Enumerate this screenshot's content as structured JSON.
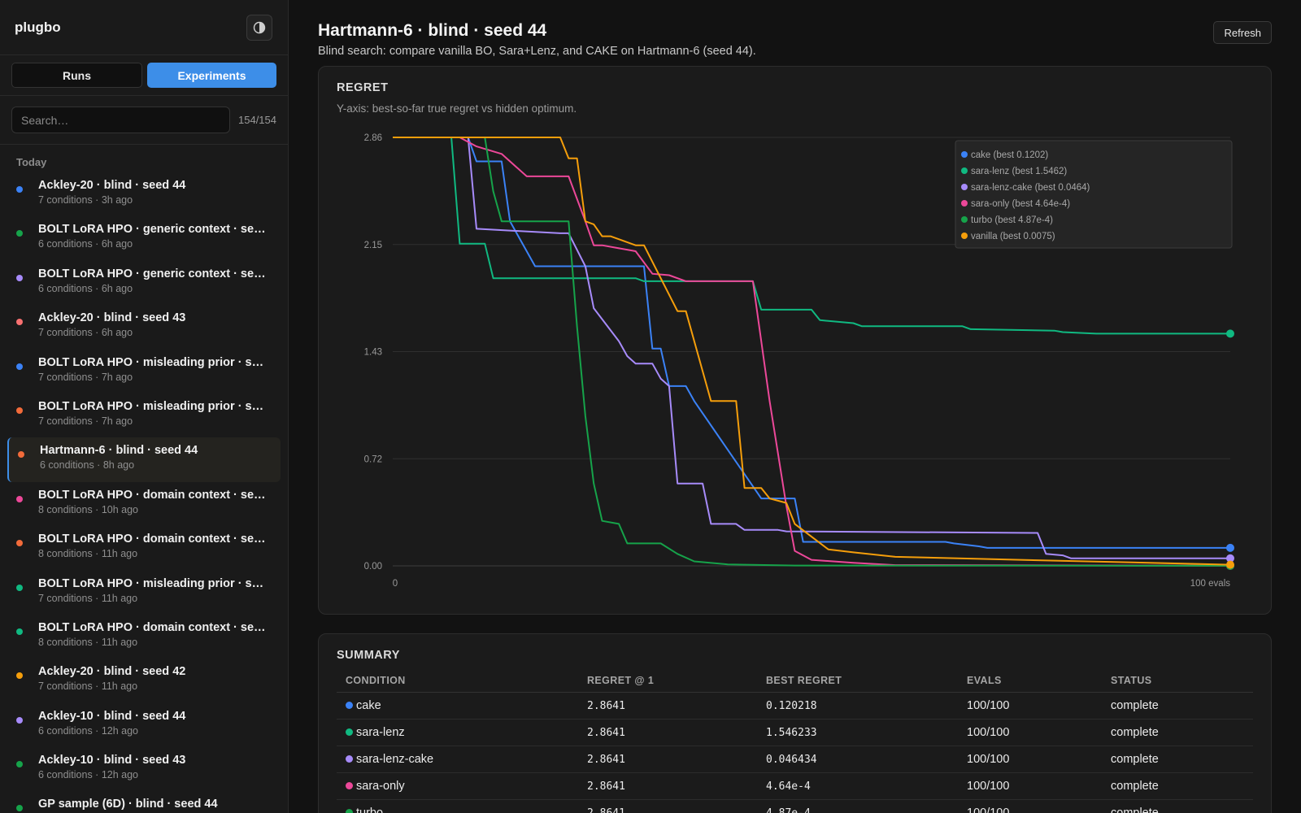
{
  "sidebar": {
    "brand": "plugbo",
    "theme_icon": "contrast-icon",
    "tabs": [
      {
        "label": "Runs",
        "active": false
      },
      {
        "label": "Experiments",
        "active": true
      }
    ],
    "search_placeholder": "Search…",
    "count": "154/154",
    "group": "Today",
    "items": [
      {
        "title": "Ackley-20 · blind · seed 44",
        "meta": "7 conditions  ·  3h ago",
        "color": "#3b82f6"
      },
      {
        "title": "BOLT LoRA HPO · generic context · seed ...",
        "meta": "6 conditions  ·  6h ago",
        "color": "#16a34a"
      },
      {
        "title": "BOLT LoRA HPO · generic context · seed ...",
        "meta": "6 conditions  ·  6h ago",
        "color": "#a78bfa"
      },
      {
        "title": "Ackley-20 · blind · seed 43",
        "meta": "7 conditions  ·  6h ago",
        "color": "#f87171"
      },
      {
        "title": "BOLT LoRA HPO · misleading prior · seed ...",
        "meta": "7 conditions  ·  7h ago",
        "color": "#3b82f6"
      },
      {
        "title": "BOLT LoRA HPO · misleading prior · seed ...",
        "meta": "7 conditions  ·  7h ago",
        "color": "#f26b3a"
      },
      {
        "title": "Hartmann-6 · blind · seed 44",
        "meta": "6 conditions  ·  8h ago",
        "color": "#f26b3a",
        "active": true
      },
      {
        "title": "BOLT LoRA HPO · domain context · seed ...",
        "meta": "8 conditions  ·  10h ago",
        "color": "#ec4899"
      },
      {
        "title": "BOLT LoRA HPO · domain context · seed ...",
        "meta": "8 conditions  ·  11h ago",
        "color": "#f26b3a"
      },
      {
        "title": "BOLT LoRA HPO · misleading prior · seed ...",
        "meta": "7 conditions  ·  11h ago",
        "color": "#10b981"
      },
      {
        "title": "BOLT LoRA HPO · domain context · seed ...",
        "meta": "8 conditions  ·  11h ago",
        "color": "#10b981"
      },
      {
        "title": "Ackley-20 · blind · seed 42",
        "meta": "7 conditions  ·  11h ago",
        "color": "#f59e0b"
      },
      {
        "title": "Ackley-10 · blind · seed 44",
        "meta": "6 conditions  ·  12h ago",
        "color": "#a78bfa"
      },
      {
        "title": "Ackley-10 · blind · seed 43",
        "meta": "6 conditions  ·  12h ago",
        "color": "#16a34a"
      },
      {
        "title": "GP sample (6D) · blind · seed 44",
        "meta": "",
        "color": "#16a34a"
      }
    ]
  },
  "header": {
    "title": "Hartmann-6 · blind · seed 44",
    "subtitle": "Blind search: compare vanilla BO, Sara+Lenz, and CAKE on Hartmann-6 (seed 44).",
    "refresh_label": "Refresh"
  },
  "chart_card": {
    "title": "REGRET",
    "subtitle": "Y-axis: best-so-far true regret vs hidden optimum."
  },
  "chart_data": {
    "type": "line",
    "x_tick_labels": [
      "0",
      "100 evals"
    ],
    "xlim": [
      0,
      100
    ],
    "ylim": [
      0,
      2.86
    ],
    "y_ticks": [
      "0.00",
      "0.72",
      "1.43",
      "2.15",
      "2.86"
    ],
    "grid": true,
    "legend_position": "top-right",
    "series": [
      {
        "name": "cake (best 0.1202)",
        "color": "#3b82f6",
        "x": [
          0,
          9,
          10,
          13,
          14,
          17,
          18,
          30,
          31,
          32,
          33,
          35,
          36,
          44,
          45,
          48,
          49,
          66,
          67,
          70,
          71,
          100
        ],
        "y": [
          2.86,
          2.86,
          2.7,
          2.7,
          2.3,
          2.0,
          2.0,
          2.0,
          1.45,
          1.45,
          1.2,
          1.2,
          1.1,
          0.45,
          0.45,
          0.45,
          0.16,
          0.16,
          0.15,
          0.13,
          0.12,
          0.12
        ]
      },
      {
        "name": "sara-lenz (best 1.5462)",
        "color": "#10b981",
        "x": [
          0,
          7,
          8,
          11,
          12,
          29,
          30,
          43,
          44,
          45,
          46,
          50,
          51,
          55,
          56,
          68,
          69,
          79,
          80,
          84,
          85,
          100
        ],
        "y": [
          2.86,
          2.86,
          2.15,
          2.15,
          1.92,
          1.92,
          1.9,
          1.9,
          1.71,
          1.71,
          1.71,
          1.71,
          1.64,
          1.62,
          1.6,
          1.6,
          1.58,
          1.57,
          1.56,
          1.55,
          1.55,
          1.55
        ]
      },
      {
        "name": "sara-lenz-cake (best 0.0464)",
        "color": "#a78bfa",
        "x": [
          0,
          9,
          10,
          20,
          21,
          23,
          24,
          27,
          28,
          29,
          31,
          32,
          33,
          34,
          37,
          38,
          41,
          42,
          46,
          47,
          77,
          78,
          80,
          81,
          100
        ],
        "y": [
          2.86,
          2.86,
          2.25,
          2.22,
          2.22,
          2.0,
          1.72,
          1.5,
          1.4,
          1.35,
          1.35,
          1.25,
          1.2,
          0.55,
          0.55,
          0.28,
          0.28,
          0.24,
          0.24,
          0.23,
          0.22,
          0.08,
          0.07,
          0.05,
          0.05
        ]
      },
      {
        "name": "sara-only (best 4.64e-4)",
        "color": "#ec4899",
        "x": [
          0,
          8,
          10,
          13,
          16,
          21,
          23,
          24,
          25,
          29,
          31,
          33,
          35,
          43,
          45,
          47,
          48,
          50,
          55,
          60,
          100
        ],
        "y": [
          2.86,
          2.86,
          2.8,
          2.75,
          2.6,
          2.6,
          2.3,
          2.14,
          2.14,
          2.1,
          1.95,
          1.94,
          1.9,
          1.9,
          1.1,
          0.4,
          0.1,
          0.04,
          0.02,
          0.005,
          0.0005
        ]
      },
      {
        "name": "turbo (best 4.87e-4)",
        "color": "#16a34a",
        "x": [
          0,
          11,
          12,
          13,
          15,
          21,
          22,
          23,
          24,
          25,
          27,
          28,
          32,
          34,
          36,
          40,
          48,
          100
        ],
        "y": [
          2.86,
          2.86,
          2.5,
          2.3,
          2.3,
          2.3,
          1.6,
          1.0,
          0.55,
          0.3,
          0.28,
          0.15,
          0.15,
          0.08,
          0.03,
          0.01,
          0.002,
          0.0005
        ]
      },
      {
        "name": "vanilla (best 0.0075)",
        "color": "#f59e0b",
        "x": [
          0,
          20,
          21,
          22,
          23,
          24,
          25,
          26,
          29,
          30,
          34,
          35,
          37,
          38,
          41,
          42,
          44,
          45,
          47,
          48,
          52,
          55,
          60,
          75,
          100
        ],
        "y": [
          2.86,
          2.86,
          2.72,
          2.72,
          2.3,
          2.28,
          2.2,
          2.2,
          2.14,
          2.14,
          1.7,
          1.7,
          1.3,
          1.1,
          1.1,
          0.52,
          0.52,
          0.45,
          0.42,
          0.28,
          0.11,
          0.09,
          0.06,
          0.04,
          0.0075
        ]
      }
    ]
  },
  "summary": {
    "title": "SUMMARY",
    "headers": [
      "CONDITION",
      "REGRET @ 1",
      "BEST REGRET",
      "EVALS",
      "STATUS"
    ],
    "rows": [
      {
        "condition": "cake",
        "color": "#3b82f6",
        "regret1": "2.8641",
        "best": "0.120218",
        "evals": "100/100",
        "status": "complete"
      },
      {
        "condition": "sara-lenz",
        "color": "#10b981",
        "regret1": "2.8641",
        "best": "1.546233",
        "evals": "100/100",
        "status": "complete"
      },
      {
        "condition": "sara-lenz-cake",
        "color": "#a78bfa",
        "regret1": "2.8641",
        "best": "0.046434",
        "evals": "100/100",
        "status": "complete"
      },
      {
        "condition": "sara-only",
        "color": "#ec4899",
        "regret1": "2.8641",
        "best": "4.64e-4",
        "evals": "100/100",
        "status": "complete"
      },
      {
        "condition": "turbo",
        "color": "#16a34a",
        "regret1": "2.8641",
        "best": "4.87e-4",
        "evals": "100/100",
        "status": "complete"
      }
    ]
  }
}
